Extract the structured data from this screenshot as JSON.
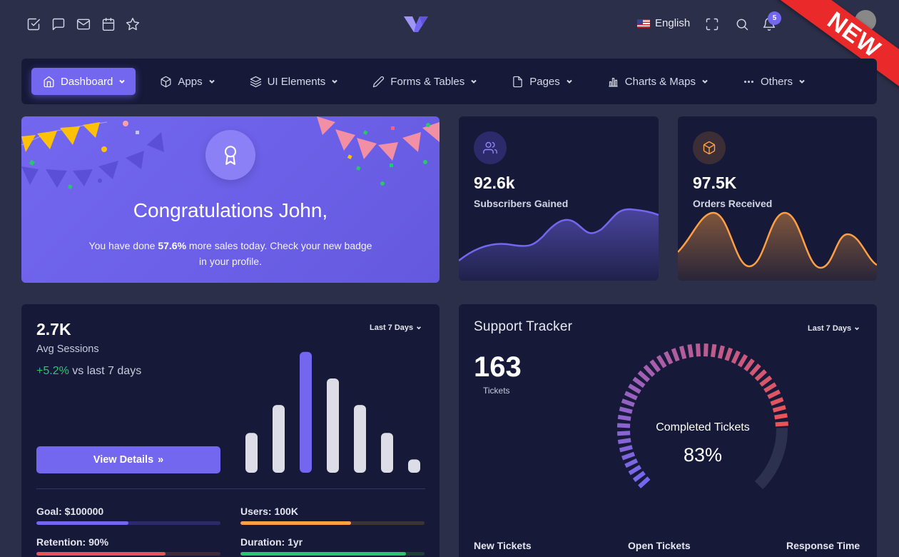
{
  "topbar": {
    "icons": [
      "checkbox-icon",
      "chat-icon",
      "mail-icon",
      "calendar-icon",
      "star-icon"
    ],
    "language": "English",
    "notification_count": "5",
    "ribbon": "NEW"
  },
  "nav": {
    "items": [
      {
        "label": "Dashboard",
        "icon": "home-icon",
        "active": true
      },
      {
        "label": "Apps",
        "icon": "package-icon"
      },
      {
        "label": "UI Elements",
        "icon": "layers-icon"
      },
      {
        "label": "Forms & Tables",
        "icon": "edit-icon"
      },
      {
        "label": "Pages",
        "icon": "file-icon"
      },
      {
        "label": "Charts & Maps",
        "icon": "bar-chart-icon"
      },
      {
        "label": "Others",
        "icon": "more-horizontal-icon"
      }
    ]
  },
  "congrats": {
    "title": "Congratulations John,",
    "text_pre": "You have done ",
    "text_bold": "57.6%",
    "text_post": " more sales today. Check your new badge in your profile."
  },
  "subscribers": {
    "value": "92.6k",
    "label": "Subscribers Gained",
    "color": "#7367f0"
  },
  "orders": {
    "value": "97.5K",
    "label": "Orders Received",
    "color": "#ff9f43"
  },
  "sessions": {
    "value": "2.7K",
    "label": "Avg Sessions",
    "delta": "+5.2%",
    "delta_suffix": " vs last 7 days",
    "dropdown": "Last 7 Days",
    "button": "View Details",
    "button_icon": "»",
    "progress": [
      {
        "label": "Goal: $100000",
        "value": 0.5,
        "color": "#7367f0",
        "track": "#2c2a6a"
      },
      {
        "label": "Users: 100K",
        "value": 0.6,
        "color": "#ff9f43",
        "track": "#3d3333"
      },
      {
        "label": "Retention: 90%",
        "value": 0.7,
        "color": "#ea5455",
        "track": "#3d2a3a"
      },
      {
        "label": "Duration: 1yr",
        "value": 0.9,
        "color": "#28c76f",
        "track": "#203d3a"
      }
    ]
  },
  "support": {
    "title": "Support Tracker",
    "dropdown": "Last 7 Days",
    "tickets": "163",
    "tickets_label": "Tickets",
    "gauge_label": "Completed Tickets",
    "gauge_value": "83%",
    "footer": [
      "New Tickets",
      "Open Tickets",
      "Response Time"
    ]
  },
  "chart_data": [
    {
      "type": "bar",
      "values": [
        30,
        51,
        91,
        71,
        51,
        30,
        10
      ],
      "highlight_index": 2,
      "colors": {
        "default": "#dcdde6",
        "highlight": "#7367f0"
      }
    },
    {
      "type": "gauge",
      "value": 83,
      "max": 100
    }
  ]
}
